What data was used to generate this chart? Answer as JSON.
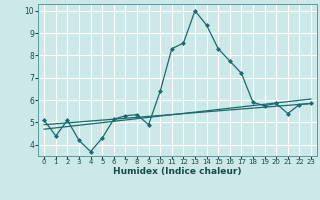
{
  "title": "",
  "xlabel": "Humidex (Indice chaleur)",
  "bg_color": "#cce8e8",
  "grid_color": "#b0d8d8",
  "line_color": "#1a6b6b",
  "xlim": [
    -0.5,
    23.5
  ],
  "ylim": [
    3.5,
    10.3
  ],
  "xticks": [
    0,
    1,
    2,
    3,
    4,
    5,
    6,
    7,
    8,
    9,
    10,
    11,
    12,
    13,
    14,
    15,
    16,
    17,
    18,
    19,
    20,
    21,
    22,
    23
  ],
  "yticks": [
    4,
    5,
    6,
    7,
    8,
    9,
    10
  ],
  "main_x": [
    0,
    1,
    2,
    3,
    4,
    5,
    6,
    7,
    8,
    9,
    10,
    11,
    12,
    13,
    14,
    15,
    16,
    17,
    18,
    19,
    20,
    21,
    22,
    23
  ],
  "main_y": [
    5.1,
    4.4,
    5.1,
    4.2,
    3.7,
    4.3,
    5.15,
    5.3,
    5.35,
    4.9,
    6.4,
    8.3,
    8.55,
    10.0,
    9.35,
    8.3,
    7.75,
    7.2,
    5.9,
    5.75,
    5.85,
    5.4,
    5.8,
    5.85
  ],
  "line1_x": [
    0,
    23
  ],
  "line1_y": [
    4.9,
    5.85
  ],
  "line2_x": [
    0,
    23
  ],
  "line2_y": [
    4.7,
    6.05
  ]
}
